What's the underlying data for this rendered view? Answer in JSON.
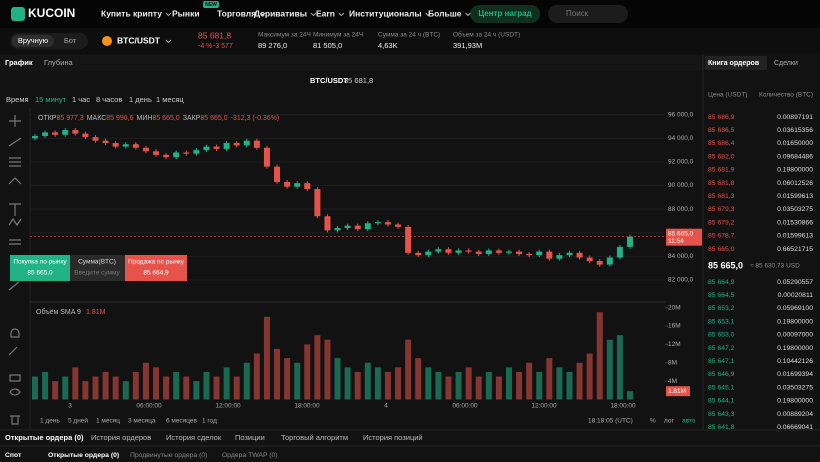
{
  "header": {
    "logo": "KUCOIN",
    "menu": [
      "Купить крипту",
      "Рынки",
      "Торговля",
      "Деривативы",
      "Earn",
      "Институционалы",
      "Больше"
    ],
    "badge": "NEW",
    "rewards": "Центр наград",
    "search": "Поиск"
  },
  "ticker": {
    "modes": [
      "Вручную",
      "Бот"
    ],
    "pair": "BTC/USDT",
    "price": "85 681,8",
    "change": "-4 %",
    "change_abs": "-3 577",
    "stats": [
      {
        "label": "Максимум за 24Ч",
        "value": "89 276,0"
      },
      {
        "label": "Минимум за 24Ч",
        "value": "81 505,0"
      },
      {
        "label": "Сумма за 24 ч (BTC)",
        "value": "4,63K"
      },
      {
        "label": "Объем за 24 ч (USDT)",
        "value": "391,93M"
      }
    ]
  },
  "panel_tabs": [
    "График",
    "Глубина"
  ],
  "chart_header": {
    "pair": "BTC/USDT",
    "price": "85 681,8"
  },
  "intervals": [
    "Время",
    "15 минут",
    "1 час",
    "8 часов",
    "1 день",
    "1 месяц"
  ],
  "chart_data": {
    "type": "candlestick",
    "ohlc_legend": [
      {
        "label": "ОТКР",
        "value": "85 977,3"
      },
      {
        "label": "МАКС",
        "value": "85 996,6"
      },
      {
        "label": "МИН",
        "value": "85 665,0"
      },
      {
        "label": "ЗАКР",
        "value": "85 665,0"
      }
    ],
    "change": "-312,3 (-0.36%)",
    "open": 94000,
    "values": [
      94200,
      94500,
      94300,
      94700,
      94400,
      94100,
      93800,
      93600,
      93300,
      93500,
      93200,
      92900,
      92600,
      92400,
      92800,
      92700,
      93000,
      93300,
      93100,
      93600,
      93400,
      93800,
      93200,
      91600,
      90300,
      89900,
      90200,
      89700,
      87400,
      86200,
      86400,
      86600,
      86300,
      86800,
      86900,
      86700,
      86500,
      84300,
      84100,
      84400,
      84600,
      84300,
      84500,
      84400,
      84200,
      84500,
      84300,
      84400,
      84200,
      84100,
      84400,
      83800,
      84100,
      84300,
      83900,
      83600,
      83300,
      83900,
      84800,
      85665
    ],
    "value_labels": [
      null,
      null,
      null,
      null,
      null,
      null,
      null,
      null,
      null,
      null,
      null,
      null,
      null,
      null,
      null,
      null,
      null,
      null,
      null,
      null,
      null,
      null,
      null,
      null,
      null,
      null,
      null,
      null,
      null,
      null,
      null,
      null,
      null,
      null,
      null,
      null,
      null,
      null,
      null,
      null,
      null,
      null,
      null,
      null,
      null,
      null,
      null,
      null,
      null,
      null,
      null,
      null,
      null,
      null,
      null,
      null,
      null,
      null,
      null,
      "85 665,0"
    ],
    "countdown": "11:54",
    "ylim": [
      80300,
      96400
    ],
    "yticks": [
      {
        "value": 82000,
        "label": "82 000,0"
      },
      {
        "value": 84000,
        "label": "84 000,0"
      },
      {
        "value": 86000,
        "label": "86 000,0"
      },
      {
        "value": 88000,
        "label": "88 000,0"
      },
      {
        "value": 90000,
        "label": "90 000,0"
      },
      {
        "value": 92000,
        "label": "92 000,0"
      },
      {
        "value": 94000,
        "label": "94 000,0"
      },
      {
        "value": 96000,
        "label": "96 000,0"
      }
    ],
    "volume_title": "Объём SMA 9",
    "volume_legend": "1.81M",
    "volume": {
      "values": [
        5000000,
        6000000,
        4000000,
        5000000,
        7000000,
        4000000,
        5000000,
        6000000,
        5000000,
        4000000,
        6000000,
        8000000,
        7000000,
        5000000,
        6000000,
        5000000,
        4000000,
        6000000,
        5000000,
        7000000,
        5000000,
        8000000,
        10000000,
        18000000,
        11000000,
        9000000,
        8000000,
        12000000,
        14000000,
        13000000,
        9000000,
        7000000,
        6000000,
        8000000,
        7000000,
        6000000,
        7000000,
        13000000,
        9000000,
        7000000,
        6000000,
        5000000,
        6000000,
        7000000,
        5000000,
        6000000,
        5000000,
        7000000,
        6000000,
        8000000,
        6000000,
        9000000,
        7000000,
        6000000,
        8000000,
        10000000,
        19000000,
        13000000,
        14000000,
        1810000
      ],
      "value_labels": [
        null,
        null,
        null,
        null,
        null,
        null,
        null,
        null,
        null,
        null,
        null,
        null,
        null,
        null,
        null,
        null,
        null,
        null,
        null,
        null,
        null,
        null,
        null,
        null,
        null,
        null,
        null,
        null,
        null,
        null,
        null,
        null,
        null,
        null,
        null,
        null,
        null,
        null,
        null,
        null,
        null,
        null,
        null,
        null,
        null,
        null,
        null,
        null,
        null,
        null,
        null,
        null,
        null,
        null,
        null,
        null,
        null,
        null,
        null,
        "1.81M"
      ],
      "ylim": [
        0,
        21000000
      ],
      "yticks": [
        {
          "value": 4000000,
          "label": "4M"
        },
        {
          "value": 8000000,
          "label": "8M"
        },
        {
          "value": 12000000,
          "label": "12M"
        },
        {
          "value": 16000000,
          "label": "16M"
        },
        {
          "value": 20000000,
          "label": "20M"
        }
      ]
    },
    "x_labels": [
      "3",
      "06:00:00",
      "12:00:00",
      "18:00:00",
      "4",
      "06:00:00",
      "12:00:00",
      "18:00:00"
    ],
    "grid": true
  },
  "trade_widget": {
    "buy": "Покупка по рынку",
    "buy_price": "85 665,0",
    "amount": "Сумма(BTC)",
    "amount_placeholder": "Введите сумму",
    "sell": "Продажа по рынку",
    "sell_price": "85 664,9"
  },
  "ranges": [
    "1 день",
    "5 дней",
    "1 месяц",
    "3 месяца",
    "6 месяцев",
    "1 год"
  ],
  "clock": "18:18:05 (UTC)",
  "scale_options": [
    "%",
    "лог",
    "авто"
  ],
  "order_book": {
    "tabs": [
      "Книга ордеров",
      "Сделки"
    ],
    "columns": [
      "Цена (USDT)",
      "Количество (BTC)"
    ],
    "asks": [
      [
        "85 686,9",
        "0.00897191"
      ],
      [
        "85 686,5",
        "0.03615356"
      ],
      [
        "85 686,4",
        "0.01650000"
      ],
      [
        "85 682,0",
        "0.09684486"
      ],
      [
        "85 681,9",
        "0.19800000"
      ],
      [
        "85 681,8",
        "0.06012526"
      ],
      [
        "85 681,3",
        "0.01599613"
      ],
      [
        "85 679,3",
        "0.03503275"
      ],
      [
        "85 679,2",
        "0.01530866"
      ],
      [
        "85 678,7",
        "0.01599613"
      ],
      [
        "85 665,0",
        "0.66521715"
      ]
    ],
    "mid": "85 665,0",
    "mid_usd": "≈ 85 630,73 USD",
    "bids": [
      [
        "85 664,9",
        "0.05290557"
      ],
      [
        "85 664,5",
        "0.00020811"
      ],
      [
        "85 653,2",
        "0.05969100"
      ],
      [
        "85 653,1",
        "0.19800000"
      ],
      [
        "85 653,0",
        "0.00097000"
      ],
      [
        "85 647,2",
        "0.19800000"
      ],
      [
        "85 647,1",
        "0.10442126"
      ],
      [
        "85 646,9",
        "0.01699394"
      ],
      [
        "85 645,1",
        "0.03503275"
      ],
      [
        "85 644,1",
        "0.19800000"
      ],
      [
        "85 643,3",
        "0.00889204"
      ],
      [
        "85 641,8",
        "0.06669041"
      ]
    ]
  },
  "bottom": {
    "tabs": [
      "Открытые ордера (0)",
      "История ордеров",
      "История сделок",
      "Позиции",
      "Торговый алгоритм",
      "История позиций"
    ],
    "subtabs": [
      "Спот",
      "Открытые ордера (0)",
      "Продвинутые ордера (0)",
      "Ордера TWAP (0)"
    ]
  }
}
